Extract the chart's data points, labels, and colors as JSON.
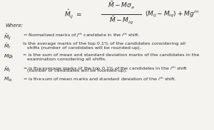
{
  "background_color": "#f5f3f0",
  "text_color": "#2a2a2a",
  "formula": {
    "lhs": "$\\hat{M}_{ij}$",
    "equals": "$=$",
    "numerator": "$\\bar{M} - M\\sigma_a$",
    "denominator": "$\\bar{M} - M_{iq}$",
    "rhs": "$(M_{ij} - M_{iq}) + Mg^m$"
  },
  "where_label": "Where:",
  "definitions": [
    {
      "symbol": "$\\hat{M}_{ij}$",
      "text": "= Normalized marks of $j^{th}$ candidate in the $i^{th}$ shift."
    },
    {
      "symbol": "$\\bar{M}_t$",
      "text": "is the average marks of the top 0.1% of the candidates considering all shifts (number of candidates will be rounded-up)."
    },
    {
      "symbol": "$Mg_t$",
      "text": "= is the sum of mean and standard deviation marks of the candidates in the examination considering all shifts."
    },
    {
      "symbol": "$\\bar{M}_t$",
      "text": "= is the average marks of the top 0.1% of the candidates in the $i^{th}$ shift (number of candidates will be rounded-up)."
    },
    {
      "symbol": "$M_{iq}$",
      "text": "= is the sum of mean marks and standard deviation of the $i^{th}$ shift."
    }
  ],
  "fs_formula": 6.5,
  "fs_where": 5.0,
  "fs_text": 4.6,
  "fs_sym": 5.2
}
